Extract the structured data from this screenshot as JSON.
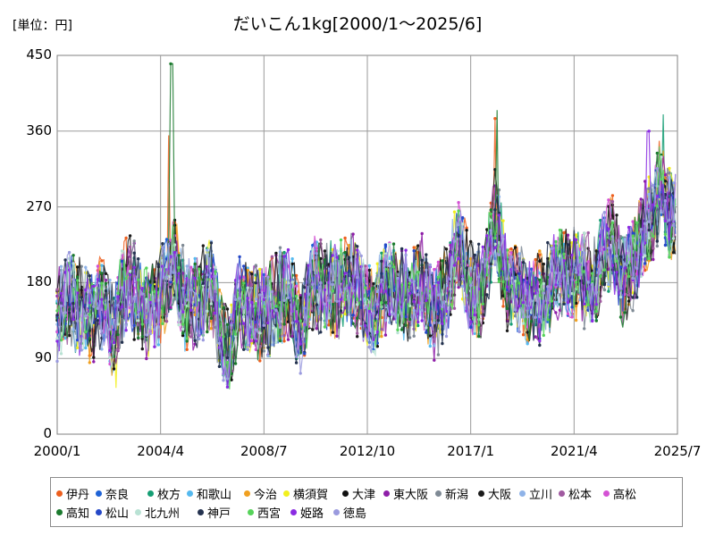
{
  "chart_data": {
    "type": "line",
    "title": "だいこん1kg[2000/1～2025/6]",
    "unit_label": "[単位：円]",
    "xlabel": "",
    "ylabel": "",
    "xlim": [
      "2000/1",
      "2025/7"
    ],
    "ylim": [
      0,
      450
    ],
    "yticks": [
      0,
      90,
      180,
      270,
      360,
      450
    ],
    "xticks": [
      "2000/1",
      "2004/4",
      "2008/7",
      "2012/10",
      "2017/1",
      "2021/4",
      "2025/7"
    ],
    "grid": true,
    "legend_position": "bottom",
    "trend": [
      {
        "x": 2000.0,
        "y": 145
      },
      {
        "x": 2000.5,
        "y": 160
      },
      {
        "x": 2001.0,
        "y": 150
      },
      {
        "x": 2001.5,
        "y": 140
      },
      {
        "x": 2002.0,
        "y": 165
      },
      {
        "x": 2002.3,
        "y": 110
      },
      {
        "x": 2002.7,
        "y": 170
      },
      {
        "x": 2003.0,
        "y": 185
      },
      {
        "x": 2003.5,
        "y": 140
      },
      {
        "x": 2004.0,
        "y": 160
      },
      {
        "x": 2004.5,
        "y": 175
      },
      {
        "x": 2004.8,
        "y": 210
      },
      {
        "x": 2005.3,
        "y": 150
      },
      {
        "x": 2005.8,
        "y": 160
      },
      {
        "x": 2006.3,
        "y": 180
      },
      {
        "x": 2006.7,
        "y": 120
      },
      {
        "x": 2007.0,
        "y": 100
      },
      {
        "x": 2007.5,
        "y": 155
      },
      {
        "x": 2008.0,
        "y": 150
      },
      {
        "x": 2008.5,
        "y": 140
      },
      {
        "x": 2009.0,
        "y": 160
      },
      {
        "x": 2009.5,
        "y": 165
      },
      {
        "x": 2010.0,
        "y": 130
      },
      {
        "x": 2010.5,
        "y": 175
      },
      {
        "x": 2011.0,
        "y": 180
      },
      {
        "x": 2011.5,
        "y": 165
      },
      {
        "x": 2012.0,
        "y": 190
      },
      {
        "x": 2012.5,
        "y": 160
      },
      {
        "x": 2013.0,
        "y": 145
      },
      {
        "x": 2013.5,
        "y": 170
      },
      {
        "x": 2014.0,
        "y": 175
      },
      {
        "x": 2014.5,
        "y": 160
      },
      {
        "x": 2015.0,
        "y": 185
      },
      {
        "x": 2015.5,
        "y": 140
      },
      {
        "x": 2016.0,
        "y": 175
      },
      {
        "x": 2016.5,
        "y": 220
      },
      {
        "x": 2017.0,
        "y": 175
      },
      {
        "x": 2017.5,
        "y": 165
      },
      {
        "x": 2018.0,
        "y": 260
      },
      {
        "x": 2018.5,
        "y": 175
      },
      {
        "x": 2019.0,
        "y": 180
      },
      {
        "x": 2019.5,
        "y": 145
      },
      {
        "x": 2020.0,
        "y": 170
      },
      {
        "x": 2020.5,
        "y": 185
      },
      {
        "x": 2021.0,
        "y": 195
      },
      {
        "x": 2021.5,
        "y": 190
      },
      {
        "x": 2022.0,
        "y": 175
      },
      {
        "x": 2022.5,
        "y": 210
      },
      {
        "x": 2022.8,
        "y": 230
      },
      {
        "x": 2023.2,
        "y": 185
      },
      {
        "x": 2023.7,
        "y": 200
      },
      {
        "x": 2024.0,
        "y": 240
      },
      {
        "x": 2024.5,
        "y": 250
      },
      {
        "x": 2024.8,
        "y": 300
      },
      {
        "x": 2025.1,
        "y": 270
      },
      {
        "x": 2025.4,
        "y": 255
      }
    ],
    "peaks": [
      {
        "x": 2004.7,
        "y": 440,
        "series": "高知"
      },
      {
        "x": 2004.6,
        "y": 355,
        "series": "伊丹"
      },
      {
        "x": 2018.1,
        "y": 385,
        "series": "高知"
      },
      {
        "x": 2018.0,
        "y": 375,
        "series": "伊丹"
      },
      {
        "x": 2024.9,
        "y": 380,
        "series": "枚方"
      },
      {
        "x": 2024.3,
        "y": 360,
        "series": "姫路"
      },
      {
        "x": 2007.0,
        "y": 68,
        "series": "新潟"
      },
      {
        "x": 2002.4,
        "y": 55,
        "series": "横須賀"
      }
    ],
    "series": [
      {
        "name": "伊丹",
        "color": "#ed5f1e"
      },
      {
        "name": "奈良",
        "color": "#1f63d6"
      },
      {
        "name": "枚方",
        "color": "#159e74"
      },
      {
        "name": "和歌山",
        "color": "#55b9ef"
      },
      {
        "name": "今治",
        "color": "#f0a020"
      },
      {
        "name": "横須賀",
        "color": "#f2f01d"
      },
      {
        "name": "大津",
        "color": "#111111"
      },
      {
        "name": "東大阪",
        "color": "#8e1ea8"
      },
      {
        "name": "新潟",
        "color": "#7f8a95"
      },
      {
        "name": "大阪",
        "color": "#1b1b1b"
      },
      {
        "name": "立川",
        "color": "#8fb3e8"
      },
      {
        "name": "松本",
        "color": "#a05aa0"
      },
      {
        "name": "高松",
        "color": "#d452d4"
      },
      {
        "name": "高知",
        "color": "#1b7a2e"
      },
      {
        "name": "松山",
        "color": "#2548c7"
      },
      {
        "name": "北九州",
        "color": "#b9e2d4"
      },
      {
        "name": "神戸",
        "color": "#24324f"
      },
      {
        "name": "西宮",
        "color": "#56d35a"
      },
      {
        "name": "姫路",
        "color": "#8a2be2"
      },
      {
        "name": "徳島",
        "color": "#9a9ade"
      }
    ]
  }
}
